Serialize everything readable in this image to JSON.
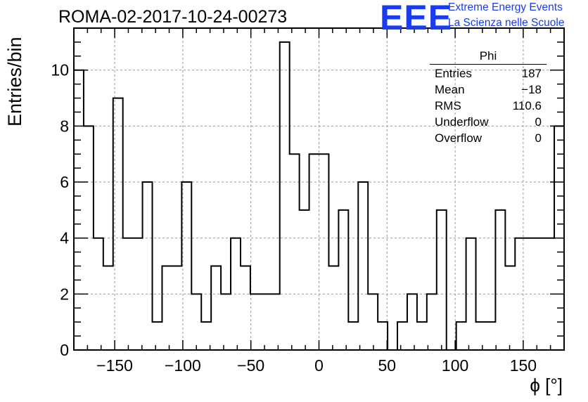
{
  "title": "ROMA-02-2017-10-24-00273",
  "logo": {
    "mark": "EEE",
    "line1": "Extreme Energy Events",
    "line2": "La Scienza nelle Scuole",
    "color": "#1a3cf0"
  },
  "stats": {
    "name": "Phi",
    "rows": [
      {
        "label": "Entries",
        "value": "187"
      },
      {
        "label": "Mean",
        "value": "−18"
      },
      {
        "label": "RMS",
        "value": "110.6"
      },
      {
        "label": "Underflow",
        "value": "0"
      },
      {
        "label": "Overflow",
        "value": "0"
      }
    ]
  },
  "chart_data": {
    "type": "bar",
    "histogram": true,
    "title": "ROMA-02-2017-10-24-00273",
    "xlabel": "ϕ [°]",
    "ylabel": "Entries/bin",
    "xlim": [
      -180,
      180
    ],
    "ylim": [
      0,
      11.5
    ],
    "bin_width": 7.2,
    "bin_low_edges": [
      -180,
      -172.8,
      -165.6,
      -158.4,
      -151.2,
      -144,
      -136.8,
      -129.6,
      -122.4,
      -115.2,
      -108,
      -100.8,
      -93.6,
      -86.4,
      -79.2,
      -72,
      -64.8,
      -57.6,
      -50.4,
      -43.2,
      -36,
      -28.8,
      -21.6,
      -14.4,
      -7.2,
      0,
      7.2,
      14.4,
      21.6,
      28.8,
      36,
      43.2,
      50.4,
      57.6,
      64.8,
      72,
      79.2,
      86.4,
      93.6,
      100.8,
      108,
      115.2,
      122.4,
      129.6,
      136.8,
      144,
      151.2,
      158.4,
      165.6,
      172.8
    ],
    "values": [
      10,
      8,
      4,
      3,
      9,
      4,
      4,
      6,
      1,
      3,
      3,
      6,
      2,
      1,
      3,
      2,
      4,
      3,
      2,
      2,
      2,
      11,
      7,
      5,
      7,
      7,
      3,
      5,
      1,
      6,
      2,
      1,
      0,
      1,
      2,
      1,
      2,
      5,
      0,
      1,
      4,
      1,
      1,
      5,
      3,
      4,
      4,
      4,
      4,
      8
    ],
    "xticks": [
      -150,
      -100,
      -50,
      0,
      50,
      100,
      150
    ],
    "xtick_labels": [
      "−150",
      "−100",
      "−50",
      "0",
      "50",
      "100",
      "150"
    ],
    "yticks": [
      0,
      2,
      4,
      6,
      8,
      10
    ],
    "ytick_labels": [
      "0",
      "2",
      "4",
      "6",
      "8",
      "10"
    ],
    "grid": true,
    "line_color": "#000000"
  }
}
